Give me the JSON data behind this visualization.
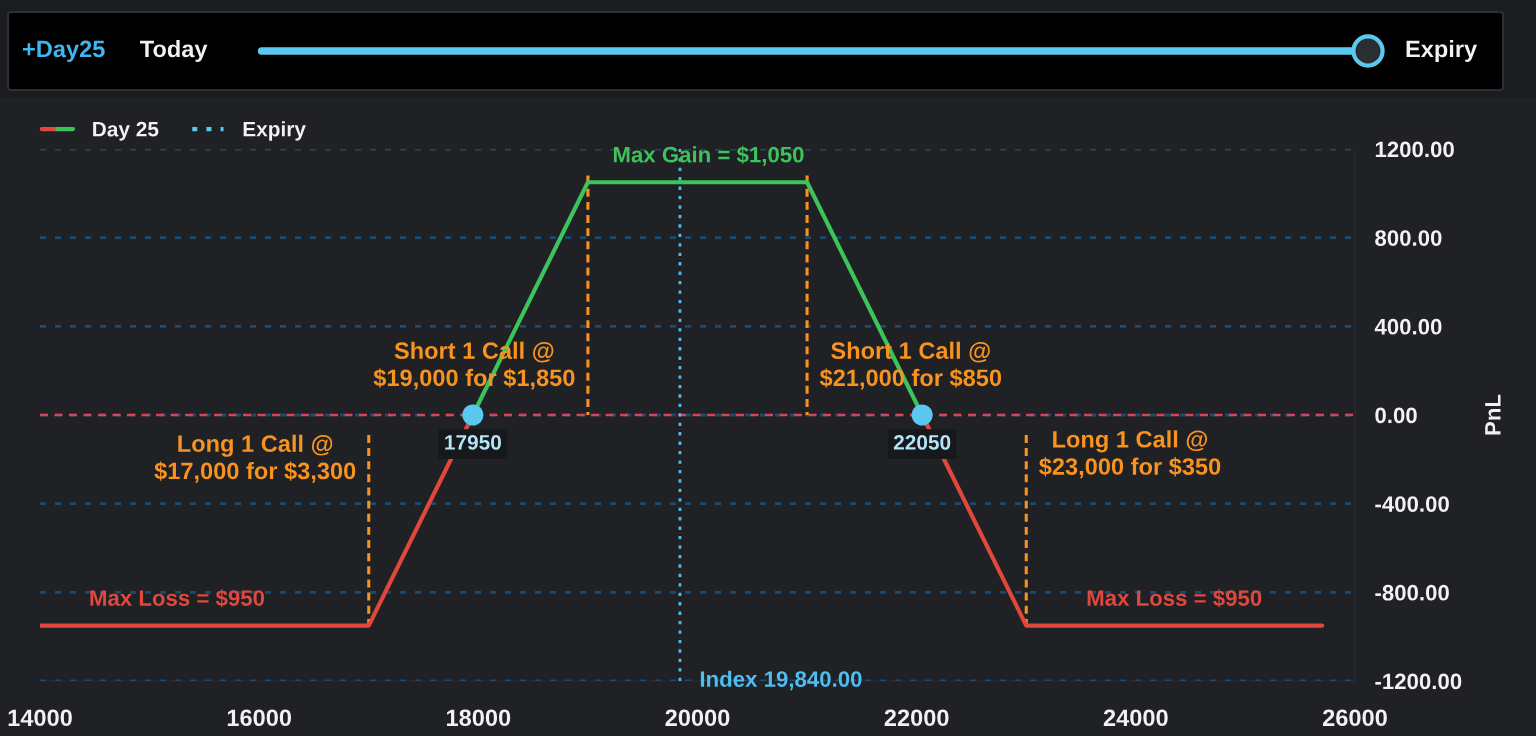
{
  "chart_data": {
    "type": "line",
    "ylabel": "PnL",
    "xlim": [
      14000,
      26000
    ],
    "xticks": [
      14000,
      16000,
      18000,
      20000,
      22000,
      24000,
      26000
    ],
    "ylim": [
      -1200,
      1200
    ],
    "yticks": [
      {
        "value": -1200,
        "label": "-1200.00"
      },
      {
        "value": -800,
        "label": "-800.00"
      },
      {
        "value": -400,
        "label": "-400.00"
      },
      {
        "value": 0,
        "label": "0.00"
      },
      {
        "value": 400,
        "label": "400.00"
      },
      {
        "value": 800,
        "label": "800.00"
      },
      {
        "value": 1200,
        "label": "1200.00"
      }
    ],
    "grid": "y",
    "legend": "top left",
    "series": [
      {
        "name": "Day 25",
        "color": "#e0483e",
        "line_style": "solid",
        "x": [
          14000,
          17000,
          17950,
          20000,
          22050,
          23000,
          25700
        ],
        "values": [
          -950,
          -950,
          0,
          null,
          0,
          -950,
          -950
        ]
      },
      {
        "color": "#3cc45a",
        "line_style": "solid",
        "x": [
          17950,
          19000,
          21000,
          22050
        ],
        "values": [
          0,
          1050,
          1050,
          0
        ]
      },
      {
        "name": "Expiry",
        "color": "#5bc8f0",
        "line_style": "dotted",
        "values": [
          null
        ]
      },
      {
        "color": "#f7931e",
        "line_style": "dashed",
        "x": [
          17000,
          17000
        ],
        "values": [
          -90,
          -950
        ]
      },
      {
        "color": "#f7931e",
        "line_style": "dashed",
        "x": [
          19000,
          19000
        ],
        "values": [
          1080,
          0
        ]
      },
      {
        "color": "#f7931e",
        "line_style": "dashed",
        "x": [
          21000,
          21000
        ],
        "values": [
          1080,
          0
        ]
      },
      {
        "color": "#f7931e",
        "line_style": "dashed",
        "x": [
          23000,
          23000
        ],
        "values": [
          -90,
          -950
        ]
      },
      {
        "type": "scatter",
        "color": "#5bc8f0",
        "marker": "circle",
        "x": [
          17950,
          22050
        ],
        "values": [
          0,
          0
        ]
      }
    ],
    "ref_lines": [
      {
        "axis": "y",
        "value": 0,
        "color": "#d9435a",
        "line_style": "dashed"
      },
      {
        "axis": "x",
        "value": 19840,
        "label": "Index 19,840.00",
        "color": "#4fbdf0",
        "line_style": "dotted"
      }
    ],
    "annotations": [
      {
        "text": "Max Gain = $1,050",
        "x": 20100,
        "y": 1050
      },
      {
        "text": "Max Loss = $950",
        "x": 15250,
        "y": -950
      },
      {
        "text": "Max Loss = $950",
        "x": 24350,
        "y": -950
      },
      {
        "text": "Long 1 Call @\n$17,000 for $3,300",
        "x": 17000,
        "y": -200
      },
      {
        "text": "Short 1 Call @\n$19,000 for $1,850",
        "x": 19000,
        "y": 220
      },
      {
        "text": "Short 1 Call @\n$21,000 for $850",
        "x": 21000,
        "y": 220
      },
      {
        "text": "Long 1 Call @\n$23,000 for $350",
        "x": 23000,
        "y": -180
      },
      {
        "text": "17950",
        "x": 17950,
        "y": 0
      },
      {
        "text": "22050",
        "x": 22050,
        "y": 0
      },
      "+Day25",
      "Today",
      "Expiry"
    ]
  }
}
